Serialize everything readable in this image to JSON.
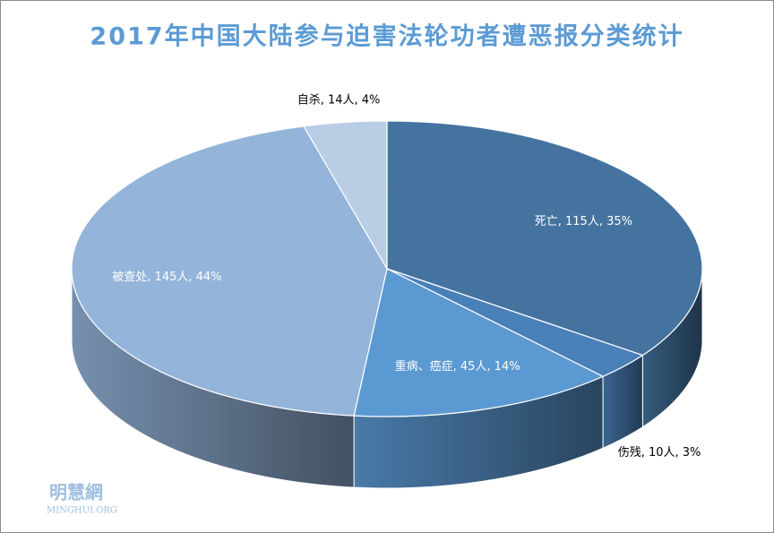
{
  "chart_data": {
    "type": "pie3d",
    "title": "2017年中国大陆参与迫害法轮功者遭恶报分类统计",
    "values": [
      115,
      10,
      45,
      145,
      14
    ],
    "value_labels": [
      "死亡, 115人, 35%",
      "伤残, 10人, 3%",
      "重病、癌症, 45人, 14%",
      "被查处, 145人, 44%",
      "自杀, 14人, 4%"
    ],
    "colors": [
      "#44739f",
      "#4a80b8",
      "#5b99d3",
      "#94b4da",
      "#b9cde5"
    ],
    "label_colors": [
      "#ffffff",
      "#000000",
      "#ffffff",
      "#ffffff",
      "#000000"
    ]
  },
  "watermark": {
    "name": "明慧網",
    "site": "MINGHUI.ORG"
  }
}
